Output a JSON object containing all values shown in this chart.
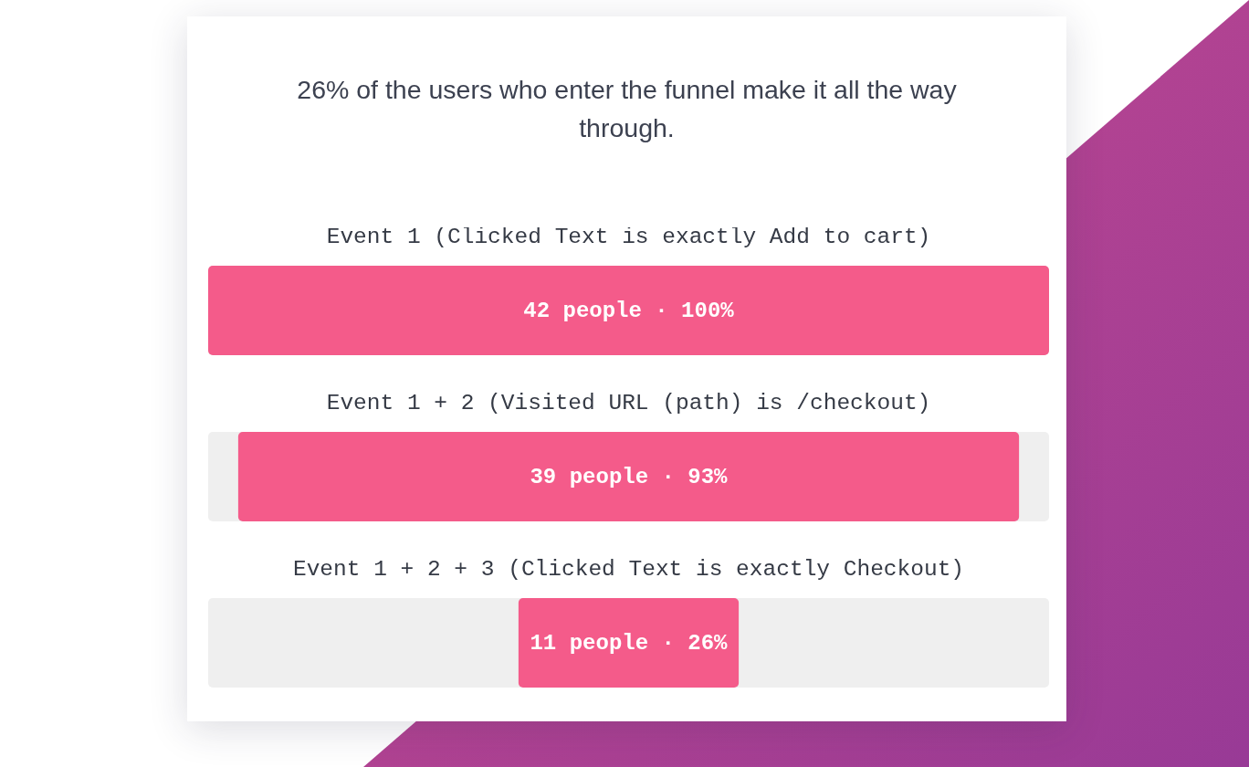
{
  "chart_data": {
    "type": "other",
    "title": "26% of the users who enter the funnel make it all the way through.",
    "categories": [
      "Event 1 (Clicked Text is exactly Add to cart)",
      "Event 1 + 2 (Visited URL (path) is /checkout)",
      "Event 1 + 2 + 3 (Clicked Text is exactly Checkout)"
    ],
    "values": [
      42,
      39,
      11
    ],
    "value_labels": [
      "42 people · 100%",
      "39 people · 93%",
      "11 people · 26%"
    ],
    "color": "#f45b8a"
  }
}
